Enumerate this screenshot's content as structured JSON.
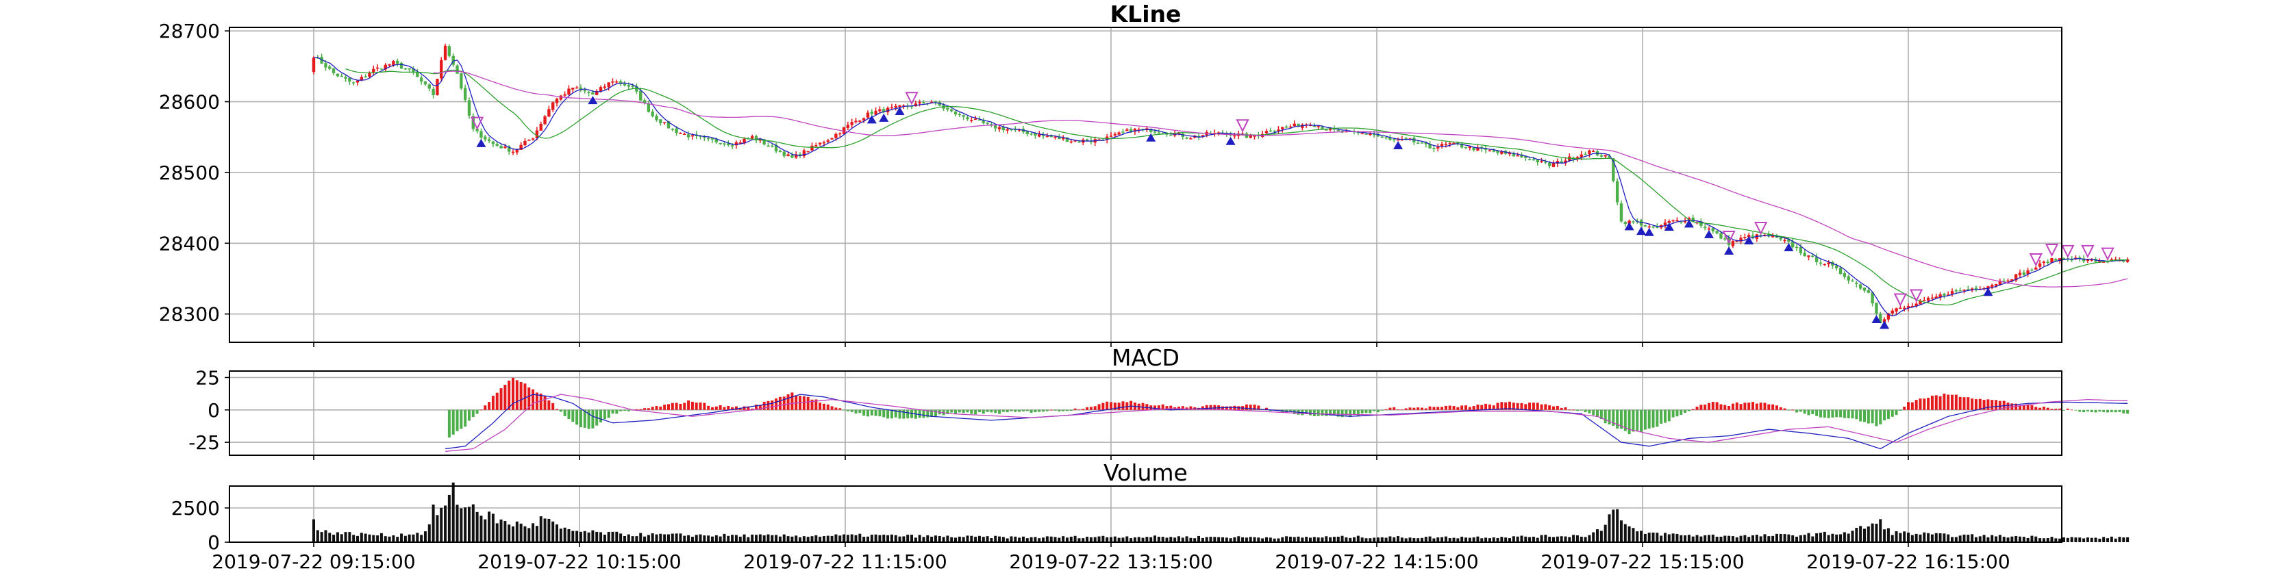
{
  "chart_data": [
    {
      "type": "candlestick",
      "title": "KLine",
      "xlabel": "",
      "ylabel": "",
      "ylim": [
        28260,
        28705
      ],
      "yticks": [
        28300,
        28400,
        28500,
        28600,
        28700
      ],
      "grid": true,
      "colors": {
        "up": "#e41a1c",
        "down": "#4daf4a",
        "ma_fast": "#1f1fbf",
        "ma_mid": "#2ca02c",
        "ma_slow": "#c044c0",
        "buy_marker": "#1f1fbf",
        "sell_marker": "#c044c0"
      },
      "x_ticks": [
        "2019-07-22 09:15:00",
        "2019-07-22 10:15:00",
        "2019-07-22 11:15:00",
        "2019-07-22 13:15:00",
        "2019-07-22 14:15:00",
        "2019-07-22 15:15:00",
        "2019-07-22 16:15:00"
      ],
      "close_anchors": [
        [
          0,
          28665
        ],
        [
          5,
          28640
        ],
        [
          10,
          28625
        ],
        [
          15,
          28645
        ],
        [
          20,
          28655
        ],
        [
          25,
          28640
        ],
        [
          30,
          28610
        ],
        [
          33,
          28680
        ],
        [
          36,
          28640
        ],
        [
          40,
          28560
        ],
        [
          45,
          28540
        ],
        [
          50,
          28530
        ],
        [
          55,
          28550
        ],
        [
          60,
          28600
        ],
        [
          65,
          28620
        ],
        [
          70,
          28610
        ],
        [
          75,
          28630
        ],
        [
          80,
          28620
        ],
        [
          85,
          28580
        ],
        [
          90,
          28560
        ],
        [
          95,
          28550
        ],
        [
          100,
          28545
        ],
        [
          105,
          28540
        ],
        [
          110,
          28550
        ],
        [
          115,
          28535
        ],
        [
          120,
          28520
        ],
        [
          125,
          28535
        ],
        [
          130,
          28550
        ],
        [
          135,
          28570
        ],
        [
          140,
          28585
        ],
        [
          145,
          28590
        ],
        [
          150,
          28595
        ],
        [
          155,
          28600
        ],
        [
          160,
          28585
        ],
        [
          165,
          28575
        ],
        [
          170,
          28565
        ],
        [
          175,
          28560
        ],
        [
          180,
          28555
        ],
        [
          185,
          28550
        ],
        [
          190,
          28545
        ],
        [
          195,
          28545
        ],
        [
          200,
          28550
        ],
        [
          205,
          28560
        ],
        [
          210,
          28560
        ],
        [
          215,
          28555
        ],
        [
          220,
          28550
        ],
        [
          225,
          28555
        ],
        [
          230,
          28555
        ],
        [
          235,
          28550
        ],
        [
          240,
          28560
        ],
        [
          245,
          28565
        ],
        [
          250,
          28570
        ],
        [
          255,
          28560
        ],
        [
          260,
          28555
        ],
        [
          265,
          28555
        ],
        [
          270,
          28545
        ],
        [
          275,
          28545
        ],
        [
          280,
          28535
        ],
        [
          285,
          28540
        ],
        [
          290,
          28535
        ],
        [
          295,
          28530
        ],
        [
          300,
          28525
        ],
        [
          305,
          28520
        ],
        [
          310,
          28510
        ],
        [
          315,
          28520
        ],
        [
          320,
          28530
        ],
        [
          325,
          28520
        ],
        [
          328,
          28430
        ],
        [
          332,
          28430
        ],
        [
          336,
          28420
        ],
        [
          340,
          28430
        ],
        [
          345,
          28435
        ],
        [
          350,
          28420
        ],
        [
          355,
          28400
        ],
        [
          360,
          28410
        ],
        [
          365,
          28410
        ],
        [
          370,
          28400
        ],
        [
          375,
          28380
        ],
        [
          380,
          28370
        ],
        [
          385,
          28350
        ],
        [
          390,
          28330
        ],
        [
          393,
          28290
        ],
        [
          396,
          28305
        ],
        [
          400,
          28310
        ],
        [
          405,
          28320
        ],
        [
          410,
          28330
        ],
        [
          415,
          28335
        ],
        [
          420,
          28340
        ],
        [
          425,
          28350
        ],
        [
          430,
          28360
        ],
        [
          435,
          28375
        ],
        [
          440,
          28380
        ],
        [
          445,
          28375
        ],
        [
          450,
          28375
        ],
        [
          455,
          28375
        ]
      ],
      "buy_markers_x": [
        42,
        70,
        140,
        143,
        147,
        210,
        230,
        272,
        330,
        333,
        335,
        340,
        345,
        350,
        355,
        360,
        370,
        392,
        394,
        420
      ],
      "sell_markers_x": [
        41,
        150,
        233,
        355,
        363,
        398,
        402,
        432,
        436,
        440,
        445,
        450
      ]
    },
    {
      "type": "bar_line",
      "title": "MACD",
      "ylim": [
        -35,
        30
      ],
      "yticks": [
        25,
        0,
        -25
      ],
      "grid": true,
      "colors": {
        "pos": "#e41a1c",
        "neg": "#4daf4a",
        "dif": "#1f1fbf",
        "dea": "#c044c0"
      },
      "bar_anchors": [
        [
          0,
          0
        ],
        [
          33,
          0
        ],
        [
          34,
          -22
        ],
        [
          38,
          -12
        ],
        [
          40,
          -6
        ],
        [
          45,
          10
        ],
        [
          48,
          20
        ],
        [
          50,
          24
        ],
        [
          52,
          22
        ],
        [
          55,
          15
        ],
        [
          58,
          10
        ],
        [
          60,
          5
        ],
        [
          63,
          -5
        ],
        [
          66,
          -12
        ],
        [
          69,
          -15
        ],
        [
          72,
          -10
        ],
        [
          75,
          -3
        ],
        [
          85,
          2
        ],
        [
          95,
          7
        ],
        [
          100,
          3
        ],
        [
          110,
          2
        ],
        [
          115,
          8
        ],
        [
          120,
          13
        ],
        [
          124,
          10
        ],
        [
          130,
          2
        ],
        [
          140,
          -5
        ],
        [
          150,
          -7
        ],
        [
          160,
          -3
        ],
        [
          175,
          -2
        ],
        [
          190,
          0
        ],
        [
          200,
          6
        ],
        [
          205,
          7
        ],
        [
          210,
          4
        ],
        [
          220,
          2
        ],
        [
          225,
          3
        ],
        [
          235,
          4
        ],
        [
          240,
          0
        ],
        [
          250,
          -4
        ],
        [
          260,
          -5
        ],
        [
          270,
          1
        ],
        [
          280,
          2
        ],
        [
          290,
          3
        ],
        [
          295,
          4
        ],
        [
          300,
          6
        ],
        [
          310,
          4
        ],
        [
          320,
          -2
        ],
        [
          325,
          -12
        ],
        [
          330,
          -18
        ],
        [
          335,
          -15
        ],
        [
          340,
          -8
        ],
        [
          345,
          0
        ],
        [
          350,
          6
        ],
        [
          355,
          4
        ],
        [
          360,
          6
        ],
        [
          365,
          5
        ],
        [
          370,
          0
        ],
        [
          378,
          -5
        ],
        [
          385,
          -6
        ],
        [
          392,
          -12
        ],
        [
          397,
          -4
        ],
        [
          400,
          6
        ],
        [
          405,
          10
        ],
        [
          410,
          12
        ],
        [
          415,
          10
        ],
        [
          420,
          8
        ],
        [
          425,
          6
        ],
        [
          430,
          3
        ],
        [
          440,
          0
        ],
        [
          450,
          -2
        ],
        [
          455,
          -2
        ]
      ],
      "dif_anchors": [
        [
          33,
          -30
        ],
        [
          38,
          -28
        ],
        [
          45,
          -10
        ],
        [
          50,
          5
        ],
        [
          55,
          12
        ],
        [
          60,
          10
        ],
        [
          65,
          5
        ],
        [
          70,
          -5
        ],
        [
          75,
          -10
        ],
        [
          85,
          -8
        ],
        [
          100,
          -2
        ],
        [
          115,
          5
        ],
        [
          122,
          12
        ],
        [
          128,
          10
        ],
        [
          140,
          2
        ],
        [
          155,
          -5
        ],
        [
          170,
          -8
        ],
        [
          190,
          -4
        ],
        [
          205,
          3
        ],
        [
          215,
          0
        ],
        [
          230,
          2
        ],
        [
          240,
          0
        ],
        [
          260,
          -5
        ],
        [
          280,
          -2
        ],
        [
          300,
          1
        ],
        [
          318,
          -3
        ],
        [
          328,
          -25
        ],
        [
          335,
          -28
        ],
        [
          345,
          -22
        ],
        [
          355,
          -20
        ],
        [
          365,
          -15
        ],
        [
          375,
          -18
        ],
        [
          385,
          -22
        ],
        [
          393,
          -30
        ],
        [
          400,
          -18
        ],
        [
          410,
          -5
        ],
        [
          420,
          2
        ],
        [
          430,
          5
        ],
        [
          440,
          6
        ],
        [
          455,
          5
        ]
      ],
      "dea_anchors": [
        [
          33,
          -32
        ],
        [
          40,
          -30
        ],
        [
          48,
          -15
        ],
        [
          55,
          5
        ],
        [
          62,
          12
        ],
        [
          70,
          8
        ],
        [
          80,
          0
        ],
        [
          95,
          -5
        ],
        [
          110,
          0
        ],
        [
          120,
          5
        ],
        [
          130,
          8
        ],
        [
          145,
          3
        ],
        [
          160,
          -3
        ],
        [
          180,
          -6
        ],
        [
          200,
          -2
        ],
        [
          215,
          1
        ],
        [
          230,
          0
        ],
        [
          250,
          -3
        ],
        [
          270,
          -4
        ],
        [
          290,
          -1
        ],
        [
          310,
          -1
        ],
        [
          322,
          -5
        ],
        [
          330,
          -15
        ],
        [
          340,
          -22
        ],
        [
          350,
          -25
        ],
        [
          360,
          -20
        ],
        [
          370,
          -15
        ],
        [
          380,
          -13
        ],
        [
          390,
          -20
        ],
        [
          397,
          -25
        ],
        [
          405,
          -15
        ],
        [
          415,
          -5
        ],
        [
          425,
          2
        ],
        [
          435,
          6
        ],
        [
          445,
          8
        ],
        [
          455,
          7
        ]
      ]
    },
    {
      "type": "bar",
      "title": "Volume",
      "ylim": [
        0,
        4100
      ],
      "yticks": [
        2500,
        0
      ],
      "grid": true,
      "colors": {
        "bar": "#111111"
      },
      "bar_anchors": [
        [
          0,
          1900
        ],
        [
          1,
          800
        ],
        [
          10,
          600
        ],
        [
          20,
          500
        ],
        [
          28,
          700
        ],
        [
          30,
          2200
        ],
        [
          33,
          2500
        ],
        [
          35,
          3600
        ],
        [
          38,
          2400
        ],
        [
          40,
          2700
        ],
        [
          43,
          2000
        ],
        [
          48,
          1400
        ],
        [
          55,
          1200
        ],
        [
          58,
          1800
        ],
        [
          62,
          900
        ],
        [
          70,
          700
        ],
        [
          80,
          550
        ],
        [
          100,
          500
        ],
        [
          120,
          450
        ],
        [
          140,
          500
        ],
        [
          160,
          400
        ],
        [
          180,
          350
        ],
        [
          200,
          400
        ],
        [
          220,
          380
        ],
        [
          240,
          350
        ],
        [
          260,
          380
        ],
        [
          280,
          350
        ],
        [
          300,
          380
        ],
        [
          320,
          500
        ],
        [
          324,
          1200
        ],
        [
          325,
          2500
        ],
        [
          326,
          3000
        ],
        [
          328,
          1500
        ],
        [
          332,
          700
        ],
        [
          345,
          500
        ],
        [
          360,
          450
        ],
        [
          375,
          550
        ],
        [
          385,
          700
        ],
        [
          390,
          1200
        ],
        [
          393,
          1400
        ],
        [
          396,
          700
        ],
        [
          410,
          500
        ],
        [
          430,
          400
        ],
        [
          445,
          300
        ],
        [
          455,
          350
        ]
      ]
    }
  ]
}
